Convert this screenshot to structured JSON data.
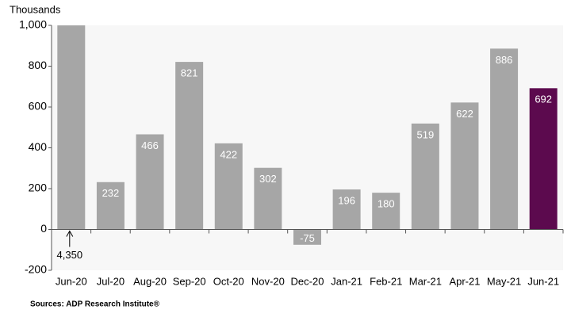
{
  "chart_data": {
    "type": "bar",
    "y_label": "Thousands",
    "source": "Sources: ADP Research Institute®",
    "categories": [
      "Jun-20",
      "Jul-20",
      "Aug-20",
      "Sep-20",
      "Oct-20",
      "Nov-20",
      "Dec-20",
      "Jan-21",
      "Feb-21",
      "Mar-21",
      "Apr-21",
      "May-21",
      "Jun-21"
    ],
    "values": [
      4350,
      232,
      466,
      821,
      422,
      302,
      -75,
      196,
      180,
      519,
      622,
      886,
      692
    ],
    "value_labels": [
      "4,350",
      "232",
      "466",
      "821",
      "422",
      "302",
      "-75",
      "196",
      "180",
      "519",
      "622",
      "886",
      "692"
    ],
    "colors": [
      "#a6a6a6",
      "#a6a6a6",
      "#a6a6a6",
      "#a6a6a6",
      "#a6a6a6",
      "#a6a6a6",
      "#a6a6a6",
      "#a6a6a6",
      "#a6a6a6",
      "#a6a6a6",
      "#a6a6a6",
      "#a6a6a6",
      "#5c0a4e"
    ],
    "ylim": [
      -200,
      1000
    ],
    "yticks": [
      -200,
      0,
      200,
      400,
      600,
      800,
      {
        "value": 1000,
        "label": "1,000"
      }
    ]
  }
}
